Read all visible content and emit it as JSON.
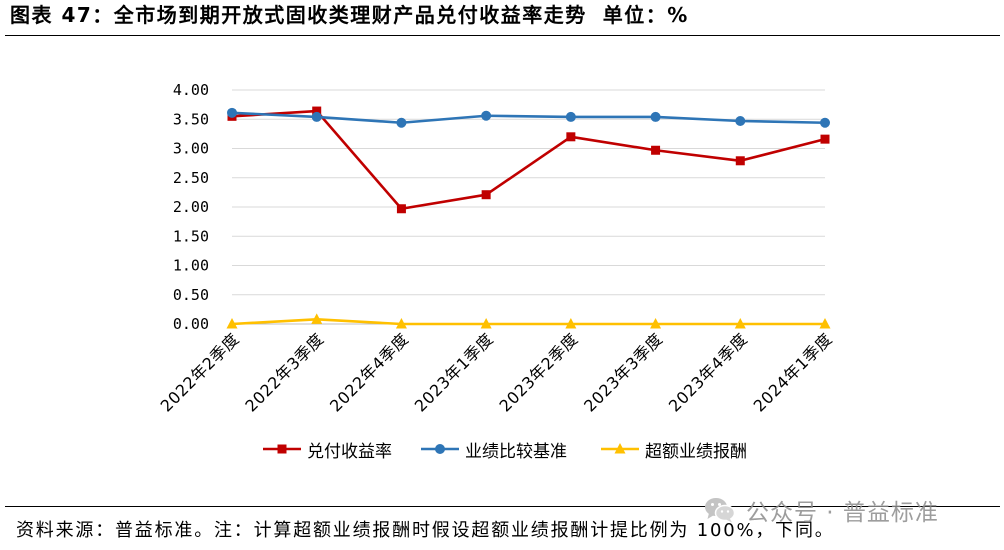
{
  "chart_data": {
    "type": "line",
    "title": "图表 47：全市场到期开放式固收类理财产品兑付收益率走势",
    "unit": "单位：%",
    "categories": [
      "2022年2季度",
      "2022年3季度",
      "2022年4季度",
      "2023年1季度",
      "2023年2季度",
      "2023年3季度",
      "2023年4季度",
      "2024年1季度"
    ],
    "series": [
      {
        "name": "兑付收益率",
        "color": "#C00000",
        "marker": "square",
        "values": [
          3.55,
          3.64,
          1.97,
          2.21,
          3.2,
          2.97,
          2.79,
          3.16
        ]
      },
      {
        "name": "业绩比较基准",
        "color": "#2E75B6",
        "marker": "circle",
        "values": [
          3.61,
          3.54,
          3.44,
          3.56,
          3.54,
          3.54,
          3.47,
          3.44
        ]
      },
      {
        "name": "超额业绩报酬",
        "color": "#FFC000",
        "marker": "triangle",
        "values": [
          0.0,
          0.08,
          0.0,
          0.0,
          0.0,
          0.0,
          0.0,
          0.0
        ]
      }
    ],
    "ylim": [
      0,
      4
    ],
    "ytick_labels": [
      "0.00",
      "0.50",
      "1.00",
      "1.50",
      "2.00",
      "2.50",
      "3.00",
      "3.50",
      "4.00"
    ],
    "grid": true,
    "legend": "bottom"
  },
  "footer": {
    "source_note": "资料来源：普益标准。注：计算超额业绩报酬时假设超额业绩报酬计提比例为 100%，下同。"
  },
  "watermark": {
    "icon": "wechat-icon",
    "text": "公众号 · 普益标准"
  }
}
